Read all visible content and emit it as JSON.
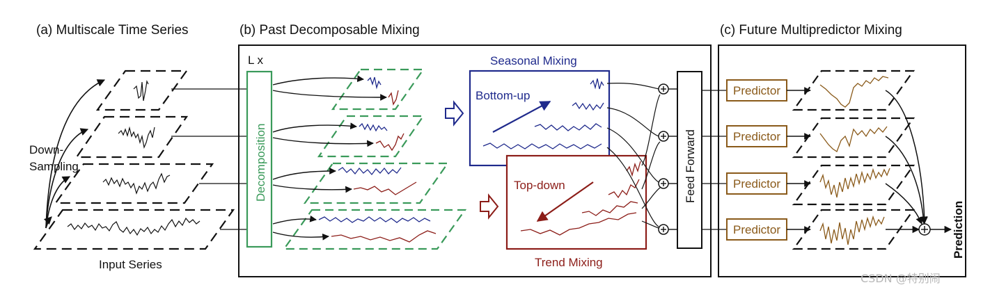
{
  "panels": {
    "a_title": "(a) Multiscale Time Series",
    "b_title": "(b) Past Decomposable Mixing",
    "c_title": "(c) Future Multipredictor Mixing"
  },
  "panel_a": {
    "downsampling_label_1": "Down-",
    "downsampling_label_2": "Sampling",
    "input_series_label": "Input Series"
  },
  "panel_b": {
    "repeat_label": "L x",
    "decomposition_label": "Decomposition",
    "seasonal_mixing_label": "Seasonal Mixing",
    "bottom_up_label": "Bottom-up",
    "top_down_label": "Top-down",
    "trend_mixing_label": "Trend Mixing",
    "feed_forward_label": "Feed Forward"
  },
  "panel_c": {
    "predictor_labels": [
      "Predictor",
      "Predictor",
      "Predictor",
      "Predictor"
    ],
    "prediction_label": "Prediction"
  },
  "watermark": "CSDN @特别闹",
  "colors": {
    "seasonal": "#1f2a8c",
    "trend": "#8c1d18",
    "decomposition": "#3a9a5a",
    "predictor": "#8a5a1a",
    "frame": "#111111"
  }
}
